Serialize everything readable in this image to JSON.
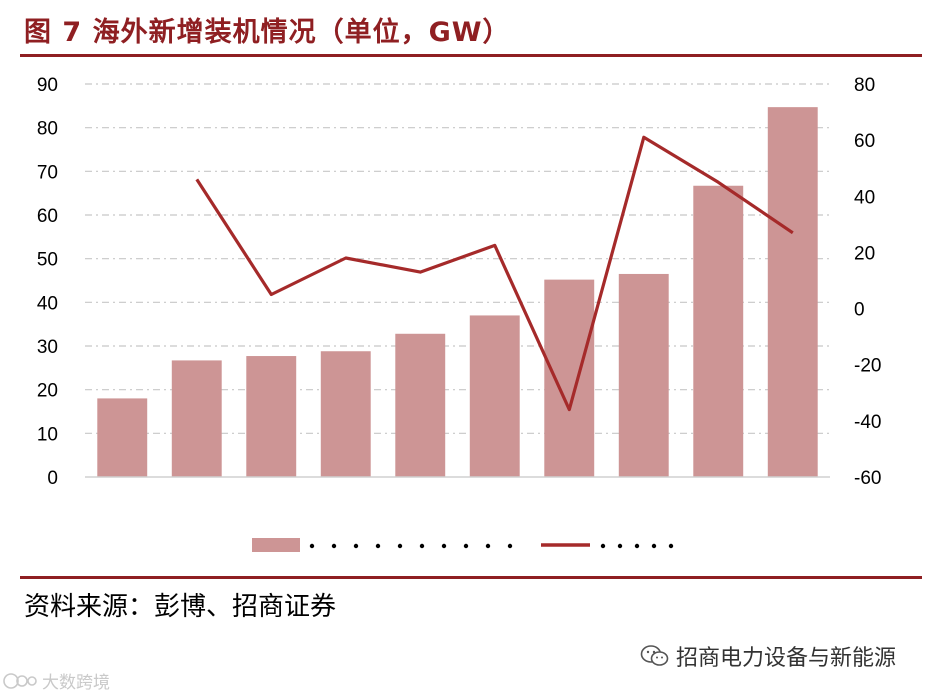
{
  "title": "图 7  海外新增装机情况（单位，GW）",
  "source": "资料来源：彭博、招商证券",
  "watermark_right": "招商电力设备与新能源",
  "watermark_left": "大数跨境",
  "colors": {
    "bar": "#cd9595",
    "line": "#a52a2a",
    "accent": "#8f1f22",
    "grid": "#c8c8c8"
  },
  "icons": {
    "wechat": "wechat-logo-icon",
    "watermark_left": "watermark-logo-icon"
  },
  "chart_data": {
    "type": "bar",
    "combo": "bar + line (secondary axis)",
    "categories": [
      "",
      "",
      "",
      "",
      "",
      "",
      "",
      "",
      "",
      ""
    ],
    "series": [
      {
        "type": "bar",
        "axis": "left",
        "values": [
          18,
          26.7,
          27.7,
          28.8,
          32.8,
          37,
          45.2,
          46.5,
          66.7,
          84.7
        ]
      },
      {
        "type": "line",
        "axis": "right",
        "values": [
          null,
          46,
          5,
          18,
          13,
          22.5,
          -36,
          61,
          45,
          27
        ]
      }
    ],
    "y_left": {
      "min": 0,
      "max": 90,
      "ticks": [
        0,
        10,
        20,
        30,
        40,
        50,
        60,
        70,
        80,
        90
      ]
    },
    "y_right": {
      "min": -60,
      "max": 80,
      "ticks": [
        -60,
        -40,
        -20,
        0,
        20,
        40,
        60,
        80
      ]
    },
    "grid": "horizontal dashed",
    "legend": {
      "placement": "bottom",
      "labels": [
        "",
        ""
      ]
    }
  }
}
